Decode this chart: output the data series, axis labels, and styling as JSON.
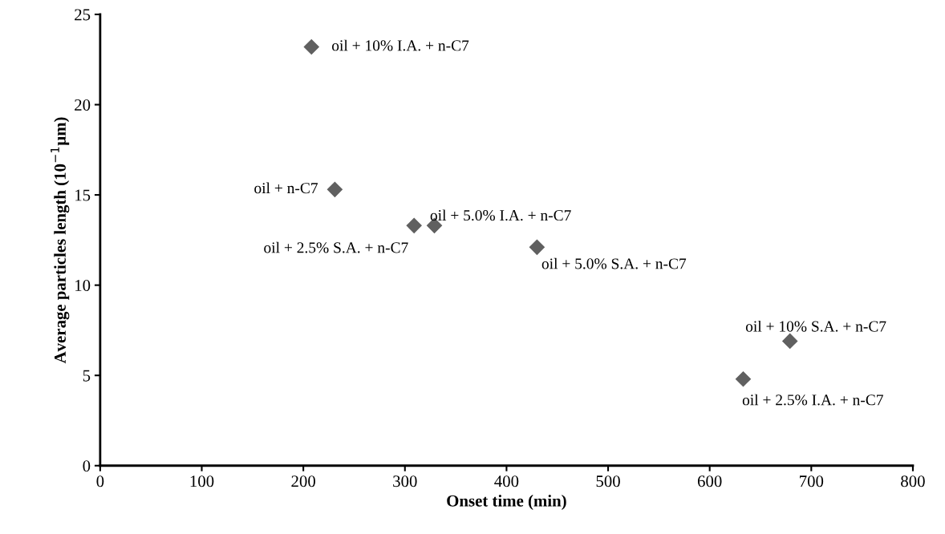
{
  "chart_data": {
    "type": "scatter",
    "xlabel": "Onset time (min)",
    "ylabel": "Average particles length (10$^{−1}$µm)",
    "x": [
      208,
      231,
      309,
      329,
      430,
      633,
      679
    ],
    "values": [
      23.2,
      15.3,
      13.3,
      13.3,
      12.1,
      4.8,
      6.9
    ],
    "color": "#606060",
    "marker": "diamond",
    "annotations": [
      {
        "text": "oil + 10% I.A. + n-C7",
        "x": 208,
        "y": 23.2
      },
      {
        "text": "oil + n-C7",
        "x": 231,
        "y": 15.3
      },
      {
        "text": "oil + 2.5% S.A. + n-C7",
        "x": 309,
        "y": 13.3
      },
      {
        "text": "oil + 5.0% I.A. + n-C7",
        "x": 329,
        "y": 13.3
      },
      {
        "text": "oil + 5.0% S.A. + n-C7",
        "x": 430,
        "y": 12.1
      },
      {
        "text": "oil + 2.5% I.A. + n-C7",
        "x": 633,
        "y": 4.8
      },
      {
        "text": "oil + 10% S.A. + n-C7",
        "x": 679,
        "y": 6.9
      }
    ],
    "xlim": [
      0,
      800
    ],
    "xticks": [
      0,
      100,
      200,
      300,
      400,
      500,
      600,
      700,
      800
    ],
    "ylim": [
      0,
      25
    ],
    "yticks": [
      0,
      5,
      10,
      15,
      20,
      25
    ],
    "grid": false
  }
}
